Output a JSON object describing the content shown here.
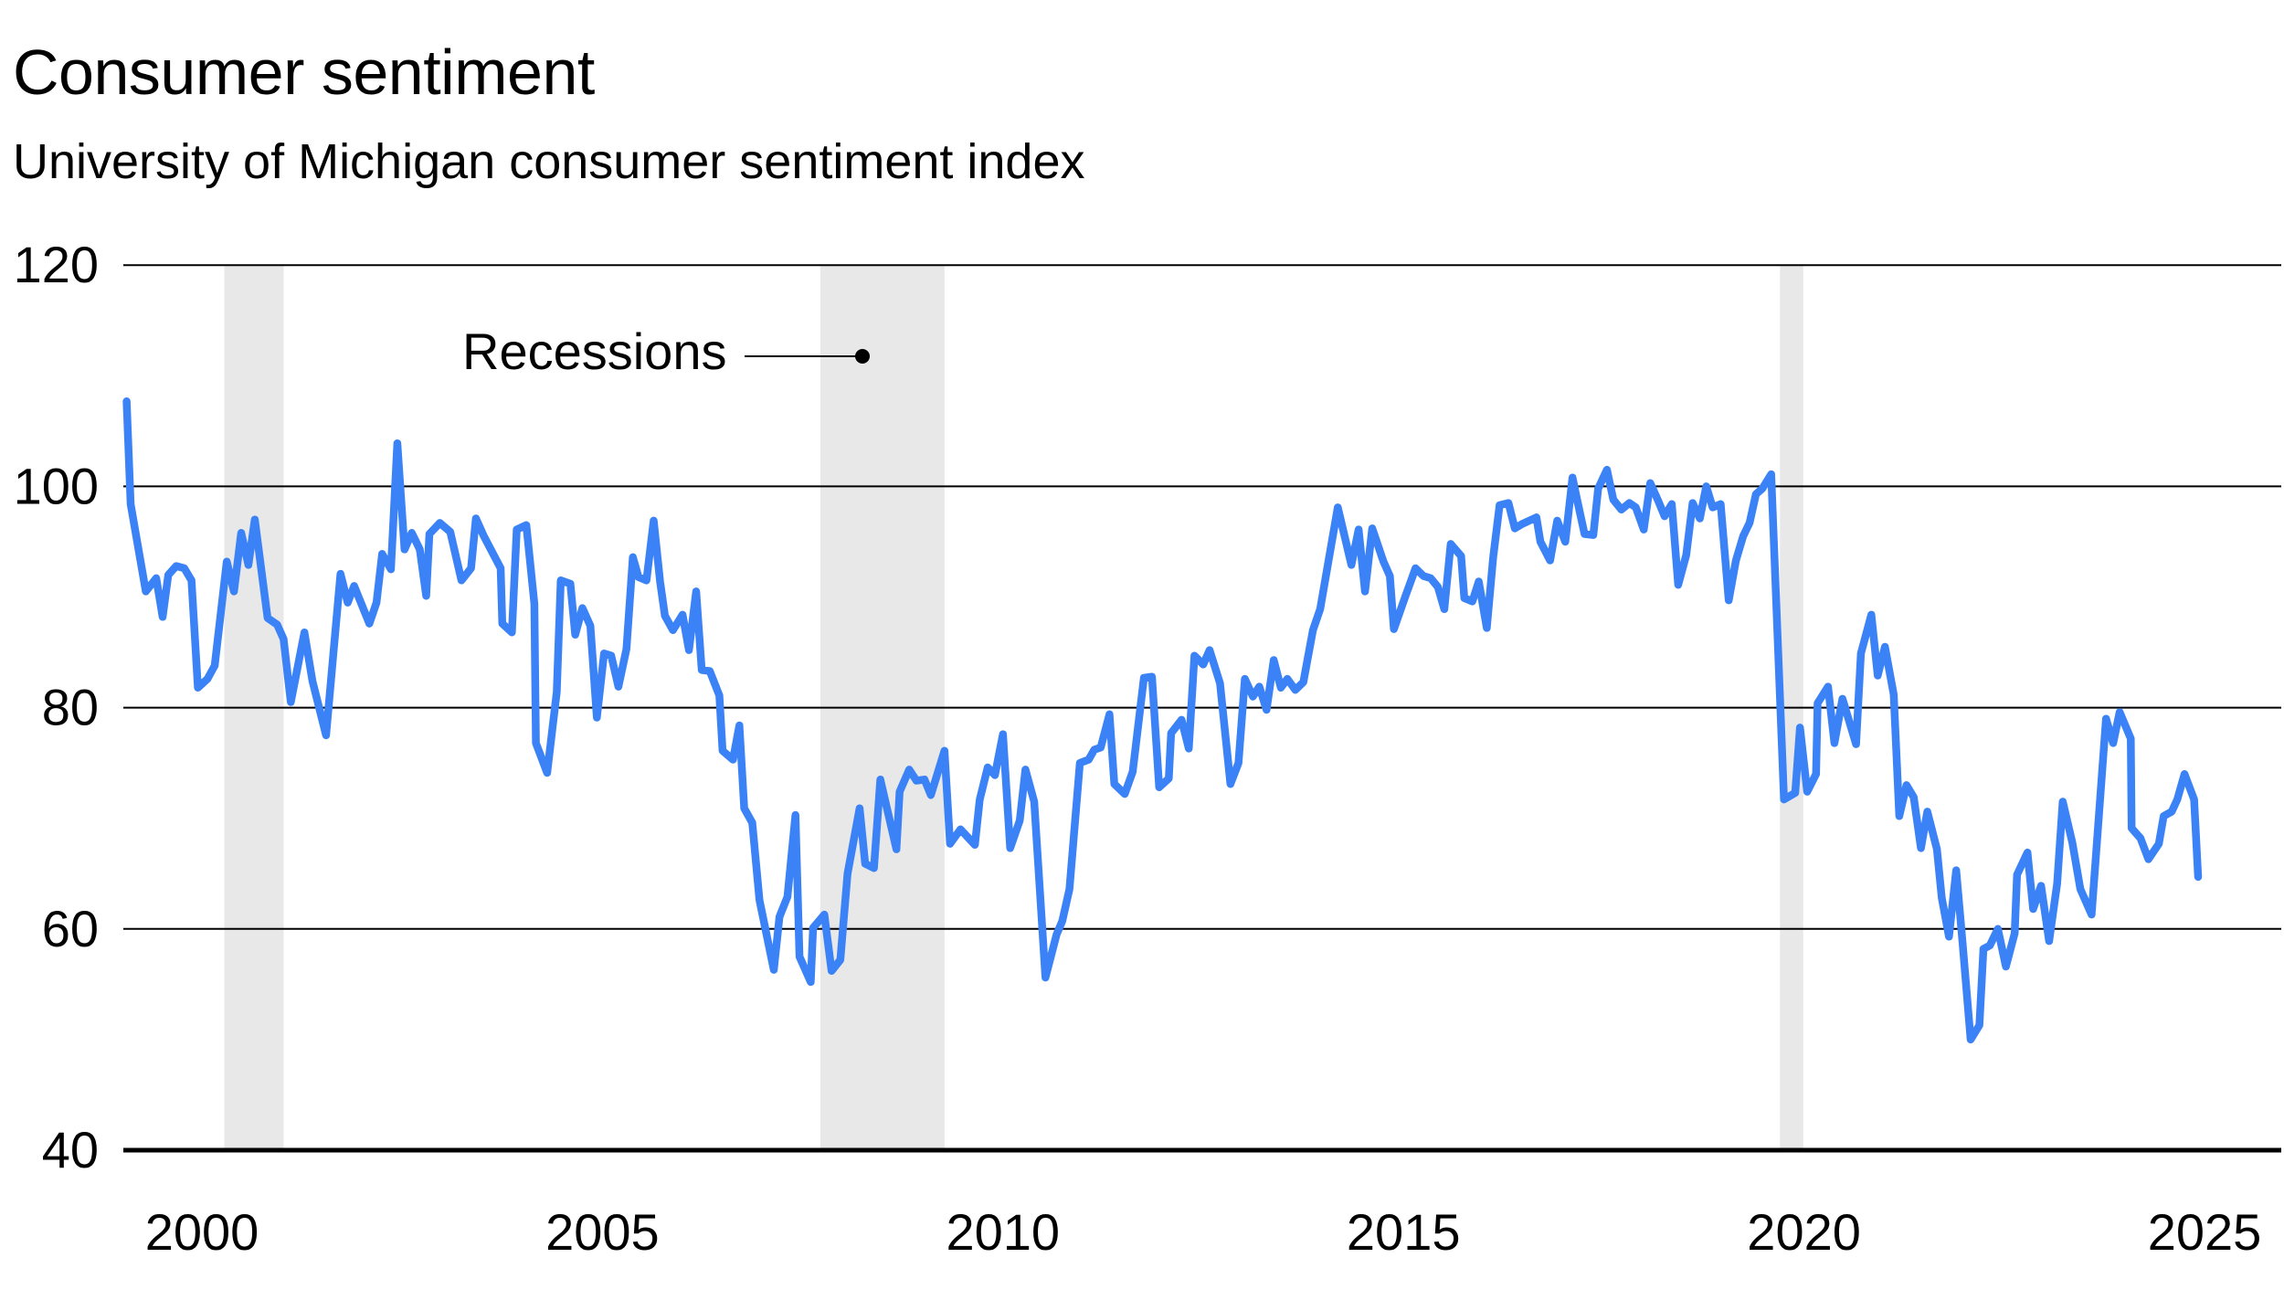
{
  "header": {
    "title": "Consumer sentiment",
    "subtitle": "University of Michigan consumer sentiment index"
  },
  "colors": {
    "line": "#3b82f6",
    "recession": "#e8e8e8",
    "grid": "#000000",
    "text": "#000000"
  },
  "chart_data": {
    "type": "line",
    "title": "Consumer sentiment",
    "subtitle": "University of Michigan consumer sentiment index",
    "xlabel": "",
    "ylabel": "",
    "xlim": [
      1999.06,
      2026.6
    ],
    "ylim": [
      40,
      120
    ],
    "grid": true,
    "x_ticks": [
      2000,
      2005,
      2010,
      2015,
      2020,
      2025
    ],
    "x_tick_labels": [
      "2000",
      "2005",
      "2010",
      "2015",
      "2020",
      "2025"
    ],
    "y_ticks": [
      120,
      100,
      80,
      60,
      40
    ],
    "y_tick_labels": [
      "120",
      "100",
      "80",
      "60",
      "40"
    ],
    "annotations": [
      {
        "text": "Recessions",
        "x": 2008.25,
        "y": 112.7
      }
    ],
    "recessions": [
      {
        "start": 2000.28,
        "end": 2001.02
      },
      {
        "start": 2007.72,
        "end": 2009.27
      },
      {
        "start": 2019.7,
        "end": 2019.99
      }
    ],
    "series": [
      {
        "name": "Consumer sentiment index",
        "x": [
          1999.06,
          1999.11,
          1999.3,
          1999.43,
          1999.51,
          1999.58,
          1999.68,
          1999.78,
          1999.87,
          1999.95,
          2000.07,
          2000.16,
          2000.31,
          2000.4,
          2000.49,
          2000.58,
          2000.66,
          2000.82,
          2000.94,
          2001.02,
          2001.11,
          2001.28,
          2001.38,
          2001.55,
          2001.73,
          2001.82,
          2001.9,
          2002.09,
          2002.18,
          2002.25,
          2002.36,
          2002.44,
          2002.53,
          2002.62,
          2002.72,
          2002.8,
          2002.84,
          2002.97,
          2003.1,
          2003.24,
          2003.36,
          2003.42,
          2003.52,
          2003.73,
          2003.75,
          2003.87,
          2003.93,
          2004.05,
          2004.15,
          2004.17,
          2004.31,
          2004.43,
          2004.48,
          2004.6,
          2004.66,
          2004.75,
          2004.85,
          2004.93,
          2005.02,
          2005.11,
          2005.2,
          2005.3,
          2005.38,
          2005.45,
          2005.55,
          2005.64,
          2005.72,
          2005.78,
          2005.88,
          2006.0,
          2006.08,
          2006.17,
          2006.24,
          2006.34,
          2006.46,
          2006.5,
          2006.63,
          2006.71,
          2006.77,
          2006.87,
          2006.96,
          2007.14,
          2007.21,
          2007.31,
          2007.41,
          2007.46,
          2007.6,
          2007.63,
          2007.77,
          2007.86,
          2007.97,
          2008.06,
          2008.21,
          2008.28,
          2008.39,
          2008.47,
          2008.67,
          2008.71,
          2008.83,
          2008.92,
          2009.02,
          2009.1,
          2009.27,
          2009.34,
          2009.47,
          2009.65,
          2009.71,
          2009.81,
          2009.9,
          2010.0,
          2010.09,
          2010.21,
          2010.28,
          2010.39,
          2010.53,
          2010.67,
          2010.74,
          2010.83,
          2010.96,
          2011.07,
          2011.14,
          2011.22,
          2011.33,
          2011.39,
          2011.52,
          2011.62,
          2011.76,
          2011.86,
          2011.95,
          2012.07,
          2012.1,
          2012.23,
          2012.32,
          2012.39,
          2012.5,
          2012.58,
          2012.71,
          2012.84,
          2012.94,
          2013.02,
          2013.12,
          2013.2,
          2013.29,
          2013.38,
          2013.47,
          2013.55,
          2013.65,
          2013.75,
          2013.87,
          2013.96,
          2014.18,
          2014.35,
          2014.44,
          2014.52,
          2014.61,
          2014.75,
          2014.83,
          2014.88,
          2015.02,
          2015.15,
          2015.25,
          2015.34,
          2015.43,
          2015.51,
          2015.59,
          2015.72,
          2015.76,
          2015.86,
          2015.94,
          2016.04,
          2016.12,
          2016.2,
          2016.31,
          2016.39,
          2016.48,
          2016.66,
          2016.71,
          2016.83,
          2016.92,
          2017.02,
          2017.11,
          2017.17,
          2017.26,
          2017.37,
          2017.43,
          2017.54,
          2017.62,
          2017.72,
          2017.82,
          2017.9,
          2018.0,
          2018.08,
          2018.18,
          2018.26,
          2018.35,
          2018.43,
          2018.53,
          2018.61,
          2018.7,
          2018.78,
          2018.86,
          2018.96,
          2019.06,
          2019.15,
          2019.24,
          2019.32,
          2019.4,
          2019.48,
          2019.59,
          2019.75,
          2019.89,
          2019.95,
          2020.04,
          2020.15,
          2020.17,
          2020.3,
          2020.38,
          2020.48,
          2020.65,
          2020.71,
          2020.84,
          2020.92,
          2021.01,
          2021.12,
          2021.19,
          2021.28,
          2021.37,
          2021.46,
          2021.54,
          2021.66,
          2021.72,
          2021.81,
          2021.9,
          2021.98,
          2022.08,
          2022.19,
          2022.24,
          2022.32,
          2022.42,
          2022.52,
          2022.63,
          2022.66,
          2022.79,
          2022.86,
          2022.96,
          2023.06,
          2023.16,
          2023.23,
          2023.35,
          2023.45,
          2023.59,
          2023.77,
          2023.86,
          2023.94,
          2024.08,
          2024.09,
          2024.2,
          2024.3,
          2024.43,
          2024.49,
          2024.59,
          2024.66,
          2024.75,
          2024.87,
          2024.92
        ],
        "values": [
          107.7,
          98.4,
          90.5,
          91.7,
          88.2,
          92.0,
          92.8,
          92.6,
          91.5,
          81.8,
          82.6,
          83.8,
          93.2,
          90.5,
          95.8,
          92.9,
          97.0,
          88.1,
          87.5,
          86.2,
          80.5,
          86.8,
          82.4,
          77.5,
          92.1,
          89.5,
          91.0,
          87.6,
          89.5,
          93.9,
          92.5,
          103.9,
          94.3,
          95.8,
          94.3,
          90.1,
          95.7,
          96.7,
          95.9,
          91.5,
          92.6,
          97.1,
          95.5,
          92.6,
          87.6,
          86.8,
          96.1,
          96.5,
          89.4,
          76.8,
          74.1,
          81.4,
          91.5,
          91.2,
          86.6,
          89.0,
          87.4,
          79.1,
          84.9,
          84.7,
          81.9,
          85.3,
          93.6,
          91.8,
          91.5,
          96.9,
          91.4,
          88.3,
          87.0,
          88.4,
          85.2,
          90.5,
          83.4,
          83.3,
          81.1,
          76.1,
          75.3,
          78.4,
          70.9,
          69.6,
          62.6,
          56.3,
          61.1,
          62.9,
          70.3,
          57.5,
          55.2,
          60.1,
          61.3,
          56.2,
          57.2,
          65.0,
          70.9,
          65.9,
          65.5,
          73.5,
          67.2,
          72.4,
          74.4,
          73.4,
          73.5,
          72.1,
          76.1,
          67.7,
          69.0,
          67.6,
          71.7,
          74.6,
          73.9,
          77.6,
          67.3,
          69.8,
          74.4,
          71.5,
          55.6,
          59.5,
          60.7,
          63.6,
          75.0,
          75.3,
          76.2,
          76.4,
          79.4,
          73.1,
          72.2,
          74.2,
          82.7,
          82.8,
          72.8,
          73.6,
          77.7,
          78.9,
          76.3,
          84.7,
          83.9,
          85.2,
          82.2,
          73.1,
          75.0,
          82.6,
          81.0,
          81.9,
          79.8,
          84.3,
          81.8,
          82.6,
          81.6,
          82.3,
          87.0,
          88.9,
          98.1,
          92.9,
          96.1,
          90.5,
          96.2,
          93.2,
          91.9,
          87.1,
          90.0,
          92.6,
          91.9,
          91.7,
          90.9,
          88.9,
          94.8,
          93.7,
          89.9,
          89.6,
          91.4,
          87.2,
          93.6,
          98.3,
          98.5,
          96.2,
          96.6,
          97.2,
          95.0,
          93.3,
          96.9,
          95.0,
          100.8,
          98.7,
          95.7,
          95.6,
          99.8,
          101.5,
          98.8,
          97.9,
          98.5,
          98.1,
          96.1,
          100.3,
          98.7,
          97.3,
          98.4,
          91.1,
          93.8,
          98.5,
          97.1,
          100.0,
          98.1,
          98.4,
          89.7,
          93.3,
          95.5,
          96.7,
          99.3,
          99.8,
          101.1,
          71.7,
          72.3,
          78.2,
          72.4,
          74.0,
          80.4,
          81.9,
          76.8,
          80.8,
          76.7,
          84.9,
          88.4,
          82.9,
          85.5,
          81.2,
          70.2,
          73.0,
          71.9,
          67.3,
          70.6,
          67.2,
          62.8,
          59.3,
          65.3,
          58.7,
          50.0,
          51.3,
          58.2,
          58.5,
          60.0,
          56.6,
          59.6,
          64.9,
          66.9,
          61.8,
          63.9,
          58.9,
          64.1,
          71.5,
          67.8,
          63.6,
          61.3,
          79.0,
          76.8,
          79.6,
          77.2,
          69.1,
          68.2,
          66.3,
          67.7,
          70.2,
          70.6,
          71.7,
          74.0,
          71.7,
          64.7
        ]
      }
    ]
  }
}
